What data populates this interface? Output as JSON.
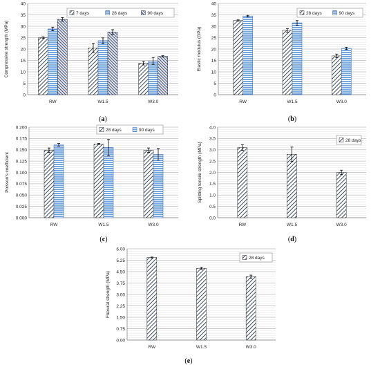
{
  "panels": [
    {
      "caption": "a",
      "chart_data": {
        "type": "bar",
        "categories": [
          "RW",
          "W1.5",
          "W3.0"
        ],
        "ylabel": "Compressive strength (MPa)",
        "ylim": [
          0,
          40
        ],
        "yticks": [
          "0",
          "5",
          "10",
          "15",
          "20",
          "25",
          "30",
          "35",
          "40"
        ],
        "legend_position": "top-right",
        "series": [
          {
            "name": "7 days",
            "pattern": "diag",
            "values": [
              25.0,
              20.5,
              13.8
            ],
            "errors": [
              0.4,
              2.0,
              0.8
            ]
          },
          {
            "name": "28 days",
            "pattern": "horiz",
            "values": [
              28.8,
              23.7,
              14.8
            ],
            "errors": [
              0.8,
              1.2,
              1.5
            ]
          },
          {
            "name": "90 days",
            "pattern": "dense",
            "values": [
              33.0,
              27.5,
              16.8
            ],
            "errors": [
              0.8,
              1.0,
              0.3
            ]
          }
        ]
      }
    },
    {
      "caption": "b",
      "chart_data": {
        "type": "bar",
        "categories": [
          "RW",
          "W1.5",
          "W3.0"
        ],
        "ylabel": "Elastic modulus (GPa)",
        "ylim": [
          0,
          40
        ],
        "yticks": [
          "0",
          "5",
          "10",
          "15",
          "20",
          "25",
          "30",
          "35",
          "40"
        ],
        "legend_position": "top-right",
        "series": [
          {
            "name": "28 days",
            "pattern": "diag",
            "values": [
              32.5,
              28.2,
              17.0
            ],
            "errors": [
              0.3,
              0.8,
              0.8
            ]
          },
          {
            "name": "90 days",
            "pattern": "horiz",
            "values": [
              34.5,
              31.5,
              20.3
            ],
            "errors": [
              0.3,
              1.0,
              0.5
            ]
          }
        ]
      }
    },
    {
      "caption": "c",
      "chart_data": {
        "type": "bar",
        "categories": [
          "RW",
          "W1.5",
          "W3.0"
        ],
        "ylabel": "Poisson's coefficient",
        "ylim": [
          0,
          0.2
        ],
        "yticks": [
          "0.000",
          "0.025",
          "0.050",
          "0.075",
          "0.100",
          "0.125",
          "0.150",
          "0.175",
          "0.200"
        ],
        "legend_position": "top-right",
        "series": [
          {
            "name": "28 days",
            "pattern": "diag",
            "values": [
              0.149,
              0.163,
              0.149
            ],
            "errors": [
              0.005,
              0.001,
              0.005
            ]
          },
          {
            "name": "90 days",
            "pattern": "horiz",
            "values": [
              0.161,
              0.155,
              0.14
            ],
            "errors": [
              0.003,
              0.018,
              0.013
            ]
          }
        ]
      }
    },
    {
      "caption": "d",
      "chart_data": {
        "type": "bar",
        "categories": [
          "RW",
          "W1.5",
          "W3.0"
        ],
        "ylabel": "Splitting tensile strength (MPa)",
        "ylim": [
          0,
          4
        ],
        "yticks": [
          "0.0",
          "0.5",
          "1.0",
          "1.5",
          "2.0",
          "2.5",
          "3.0",
          "3.5",
          "4.0"
        ],
        "legend_position": "top-right",
        "series": [
          {
            "name": "28 days",
            "pattern": "diag",
            "values": [
              3.1,
              2.8,
              2.0
            ],
            "errors": [
              0.12,
              0.32,
              0.1
            ]
          }
        ]
      }
    },
    {
      "caption": "e",
      "chart_data": {
        "type": "bar",
        "categories": [
          "RW",
          "W1.5",
          "W3.0"
        ],
        "ylabel": "Flexural strength (MPa)",
        "ylim": [
          0,
          6
        ],
        "yticks": [
          "0.00",
          "0.75",
          "1.50",
          "2.25",
          "3.00",
          "3.75",
          "4.50",
          "5.25",
          "6.00"
        ],
        "legend_position": "top-right",
        "series": [
          {
            "name": "28 days",
            "pattern": "diag",
            "values": [
              5.43,
              4.72,
              4.17
            ],
            "errors": [
              0.03,
              0.06,
              0.1
            ]
          }
        ]
      }
    }
  ]
}
